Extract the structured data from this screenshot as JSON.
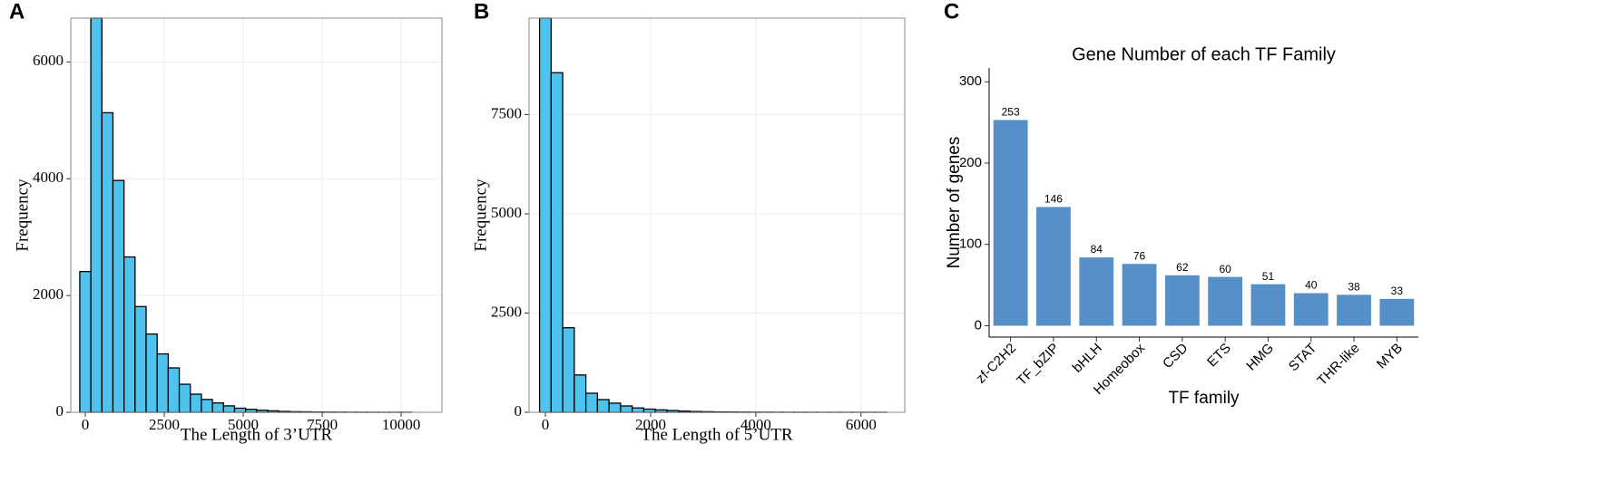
{
  "chart_data": [
    {
      "type": "histogram",
      "panel_label": "A",
      "x_label": "The Length of 3’UTR",
      "y_label": "Frequency",
      "bins": [
        -175,
        175,
        525,
        875,
        1225,
        1575,
        1925,
        2275,
        2625,
        2975,
        3325,
        3675,
        4025,
        4375,
        4725,
        5075,
        5425,
        5775,
        6125,
        6475,
        6825,
        7175,
        7525,
        7875,
        8225,
        8575,
        8925,
        9275,
        9625,
        9975,
        10325
      ],
      "values": [
        2410,
        6750,
        5130,
        3970,
        2660,
        1810,
        1340,
        1000,
        760,
        480,
        310,
        220,
        160,
        110,
        70,
        50,
        35,
        25,
        15,
        10,
        8,
        5,
        4,
        3,
        2,
        2,
        1,
        1,
        1,
        1
      ],
      "color": "#4ec3ee",
      "xlim": [
        -460,
        11290
      ],
      "xticks": [
        0,
        2500,
        5000,
        7500,
        10000
      ],
      "ylim": [
        0,
        6750
      ],
      "yticks": [
        0,
        2000,
        4000,
        6000
      ],
      "grid": true
    },
    {
      "type": "histogram",
      "panel_label": "B",
      "x_label": "The Length of 5’UTR",
      "y_label": "Frequency",
      "bins": [
        -110,
        110,
        330,
        550,
        770,
        990,
        1210,
        1430,
        1650,
        1870,
        2090,
        2310,
        2530,
        2750,
        2970,
        3190,
        3410,
        3630,
        3850,
        4070,
        4290,
        4510,
        4730,
        4950,
        5170,
        5390,
        5610,
        5830,
        6050,
        6270,
        6490
      ],
      "values": [
        9930,
        8555,
        2130,
        940,
        480,
        320,
        230,
        160,
        110,
        80,
        60,
        45,
        30,
        20,
        15,
        10,
        8,
        6,
        5,
        4,
        3,
        2,
        2,
        1,
        1,
        1,
        1,
        1,
        1,
        1
      ],
      "color": "#4ec3ee",
      "xlim": [
        -310,
        6830
      ],
      "xticks": [
        0,
        2000,
        4000,
        6000
      ],
      "ylim": [
        0,
        9930
      ],
      "yticks": [
        0,
        2500,
        5000,
        7500
      ],
      "grid": true
    },
    {
      "type": "bar",
      "panel_label": "C",
      "title": "Gene Number of each TF Family",
      "x_label": "TF family",
      "y_label": "Number of genes",
      "categories": [
        "zf-C2H2",
        "TF_bZIP",
        "bHLH",
        "Homeobox",
        "CSD",
        "ETS",
        "HMG",
        "STAT",
        "THR-like",
        "MYB"
      ],
      "values": [
        253,
        146,
        84,
        76,
        62,
        60,
        51,
        40,
        38,
        33
      ],
      "color": "#5690c8",
      "ylim": [
        -14,
        317
      ],
      "yticks": [
        0,
        100,
        200,
        300
      ],
      "grid": false
    }
  ]
}
